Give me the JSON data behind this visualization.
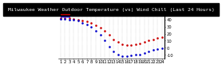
{
  "title": "Milwaukee Weather Outdoor Temperature (vs) Wind Chill (Last 24 Hours)",
  "temp": [
    42,
    42,
    42,
    41,
    40,
    38,
    37,
    35,
    32,
    28,
    24,
    18,
    12,
    8,
    5,
    4,
    4,
    5,
    6,
    8,
    10,
    12,
    14,
    15
  ],
  "windchill": [
    41,
    41,
    40,
    39,
    38,
    35,
    33,
    29,
    24,
    18,
    10,
    2,
    -5,
    -10,
    -12,
    -12,
    -11,
    -10,
    -9,
    -7,
    -5,
    -3,
    -2,
    -1
  ],
  "hours": [
    "1",
    "2",
    "3",
    "4",
    "5",
    "6",
    "7",
    "8",
    "9",
    "10",
    "11",
    "12",
    "13",
    "14",
    "15",
    "16",
    "17",
    "18",
    "19",
    "20",
    "21",
    "22",
    "23",
    "24"
  ],
  "temp_color": "#cc0000",
  "windchill_color": "#0000cc",
  "background_color": "#ffffff",
  "title_bg_color": "#000000",
  "title_text_color": "#ffffff",
  "grid_color": "#888888",
  "ylim": [
    -15,
    50
  ],
  "ytick_values": [
    40,
    30,
    20,
    10,
    0,
    -10
  ],
  "ytick_labels": [
    "40",
    "30",
    "20",
    "10",
    "0",
    "-10"
  ],
  "title_fontsize": 4.5,
  "tick_fontsize": 3.8,
  "markersize": 1.8,
  "linewidth": 0.5
}
